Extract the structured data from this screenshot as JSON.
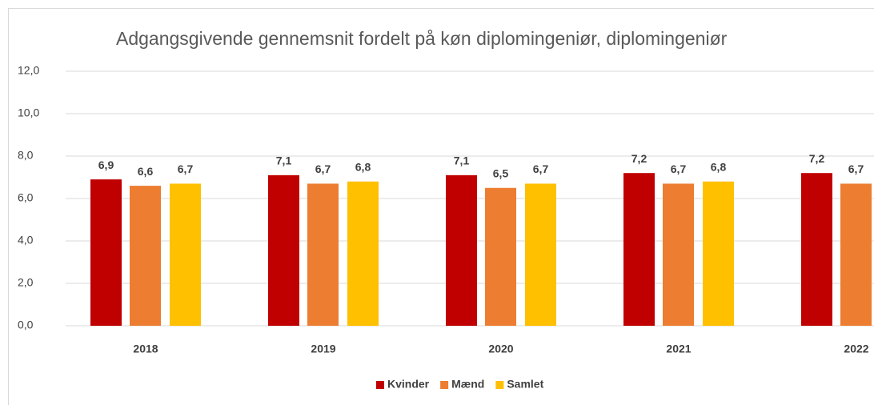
{
  "chart_data": {
    "type": "bar",
    "title": "Adgangsgivende gennemsnit fordelt på køn  diplomingeniør, diplomingeniør",
    "categories": [
      "2018",
      "2019",
      "2020",
      "2021",
      "2022"
    ],
    "series": [
      {
        "name": "Kvinder",
        "color": "#c00000",
        "values": [
          6.9,
          7.1,
          7.1,
          7.2,
          7.2
        ],
        "value_labels": [
          "6,9",
          "7,1",
          "7,1",
          "7,2",
          "7,2"
        ]
      },
      {
        "name": "Mænd",
        "color": "#ed7d31",
        "values": [
          6.6,
          6.7,
          6.5,
          6.7,
          6.7
        ],
        "value_labels": [
          "6,6",
          "6,7",
          "6,5",
          "6,7",
          "6,7"
        ]
      },
      {
        "name": "Samlet",
        "color": "#ffc000",
        "values": [
          6.7,
          6.8,
          6.7,
          6.8,
          null
        ],
        "value_labels": [
          "6,7",
          "6,8",
          "6,7",
          "6,8",
          null
        ]
      }
    ],
    "ylim": [
      0,
      12
    ],
    "yticks": [
      {
        "value": 0,
        "label": "0,0"
      },
      {
        "value": 2,
        "label": "2,0"
      },
      {
        "value": 4,
        "label": "4,0"
      },
      {
        "value": 6,
        "label": "6,0"
      },
      {
        "value": 8,
        "label": "8,0"
      },
      {
        "value": 10,
        "label": "10,0"
      },
      {
        "value": 12,
        "label": "12,0"
      }
    ],
    "grid": true,
    "legend": "bottom"
  }
}
